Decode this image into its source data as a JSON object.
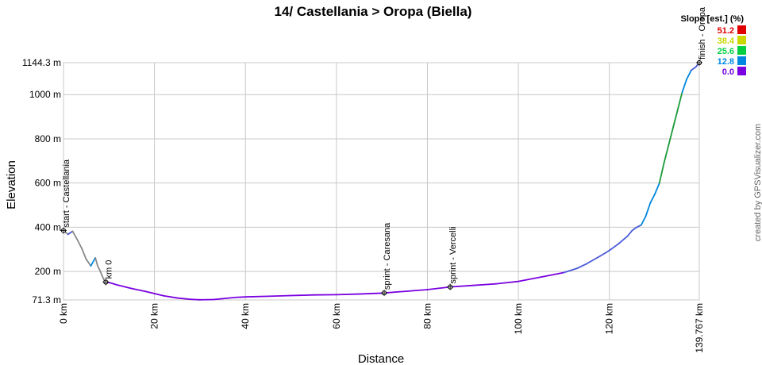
{
  "chart_data": {
    "type": "line",
    "title": "14/ Castellania > Oropa (Biella)",
    "xlabel": "Distance",
    "ylabel": "Elevation",
    "xlim": [
      0,
      139.767
    ],
    "ylim": [
      71.3,
      1144.3
    ],
    "x_ticks": [
      {
        "value": 0,
        "label": "0 km"
      },
      {
        "value": 20,
        "label": "20 km"
      },
      {
        "value": 40,
        "label": "40 km"
      },
      {
        "value": 60,
        "label": "60 km"
      },
      {
        "value": 80,
        "label": "80 km"
      },
      {
        "value": 100,
        "label": "100 km"
      },
      {
        "value": 120,
        "label": "120 km"
      },
      {
        "value": 139.767,
        "label": "139.767 km"
      }
    ],
    "y_ticks": [
      {
        "value": 71.3,
        "label": "71.3 m"
      },
      {
        "value": 200,
        "label": "200 m"
      },
      {
        "value": 400,
        "label": "400 m"
      },
      {
        "value": 600,
        "label": "600 m"
      },
      {
        "value": 800,
        "label": "800 m"
      },
      {
        "value": 1000,
        "label": "1000 m"
      },
      {
        "value": 1144.3,
        "label": "1144.3 m"
      }
    ],
    "grid": true,
    "series": [
      {
        "x": [
          0,
          1,
          2,
          3,
          4,
          5,
          6,
          7,
          7.5,
          8,
          8.5,
          9,
          9.5,
          10,
          12,
          15,
          18,
          20,
          22,
          25,
          28,
          30,
          33,
          35,
          38,
          40,
          45,
          50,
          55,
          60,
          65,
          70,
          75,
          80,
          85,
          90,
          95,
          100,
          105,
          110,
          113,
          115,
          118,
          120,
          122,
          124,
          125,
          126,
          127,
          128,
          129,
          130,
          131,
          132,
          133,
          134,
          135,
          136,
          137,
          138,
          139,
          139.767
        ],
        "y": [
          385,
          368,
          382,
          345,
          305,
          255,
          225,
          262,
          225,
          205,
          180,
          158,
          152,
          150,
          138,
          123,
          110,
          100,
          90,
          80,
          74,
          72,
          73,
          77,
          83,
          85,
          88,
          91,
          94,
          95,
          98,
          102,
          110,
          118,
          130,
          137,
          144,
          155,
          175,
          195,
          215,
          235,
          270,
          295,
          325,
          360,
          385,
          400,
          410,
          450,
          510,
          550,
          600,
          690,
          770,
          850,
          930,
          1010,
          1070,
          1110,
          1125,
          1144.3
        ]
      }
    ],
    "waypoints": [
      {
        "label": "start - Castellania",
        "x": 0,
        "y": 385
      },
      {
        "label": "km 0",
        "x": 9.3,
        "y": 152
      },
      {
        "label": "sprint - Caresana",
        "x": 70.5,
        "y": 103
      },
      {
        "label": "sprint - Vercelli",
        "x": 85,
        "y": 130
      },
      {
        "label": "finish - Oropa",
        "x": 139.767,
        "y": 1144.3
      }
    ],
    "legend": {
      "title": "Slope [est.] (%)",
      "placement": "top-right",
      "entries": [
        {
          "label": "51.2",
          "color": "#e00000"
        },
        {
          "label": "38.4",
          "color": "#c8d800"
        },
        {
          "label": "25.6",
          "color": "#00d040"
        },
        {
          "label": "12.8",
          "color": "#0088e0"
        },
        {
          "label": "0.0",
          "color": "#7a00e0"
        }
      ]
    },
    "colors": {
      "line_low": "#7a00e0",
      "line_flat": "#4a5ad8",
      "line_descent": "#888888",
      "line_steep": "#1a9a3a",
      "grid": "#c8c8c8",
      "axis": "#888888"
    }
  },
  "credit": "created by GPSVisualizer.com"
}
